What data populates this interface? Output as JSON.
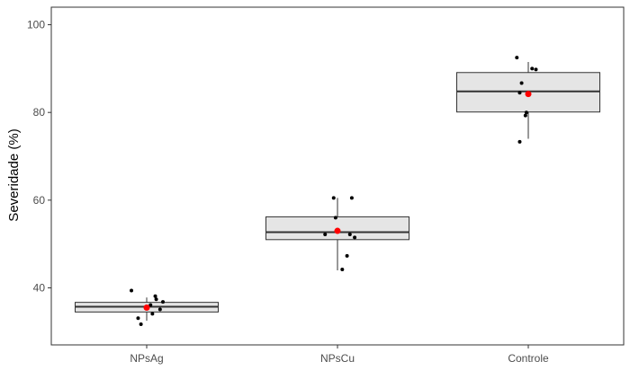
{
  "chart_data": {
    "type": "boxplot",
    "title": "",
    "xlabel": "",
    "ylabel": "Severidade (%)",
    "categories": [
      "NPsAg",
      "NPsCu",
      "Controle"
    ],
    "ylim": [
      27,
      104
    ],
    "yticks": [
      40,
      60,
      80,
      100
    ],
    "grid": false,
    "legend": "none",
    "colors": {
      "box_fill": "#e5e5e5",
      "box_stroke": "#333333",
      "point": "#000000",
      "mean_point": "#ff0000",
      "panel_border": "#333333"
    },
    "boxes": [
      {
        "category": "NPsAg",
        "lower_whisker": 32.5,
        "q1": 34.5,
        "median": 35.7,
        "q3": 36.7,
        "upper_whisker": 37.8,
        "mean": 35.5,
        "points": [
          {
            "x": -0.08,
            "y": 39.4
          },
          {
            "x": 0.045,
            "y": 38.1
          },
          {
            "x": 0.05,
            "y": 37.4
          },
          {
            "x": 0.085,
            "y": 36.8
          },
          {
            "x": 0.02,
            "y": 36.1
          },
          {
            "x": 0.07,
            "y": 35.1
          },
          {
            "x": 0.03,
            "y": 34.1
          },
          {
            "x": -0.045,
            "y": 33.1
          },
          {
            "x": -0.03,
            "y": 31.7
          }
        ]
      },
      {
        "category": "NPsCu",
        "lower_whisker": 44.0,
        "q1": 51.0,
        "median": 52.7,
        "q3": 56.2,
        "upper_whisker": 60.5,
        "mean": 53.0,
        "points": [
          {
            "x": -0.02,
            "y": 60.5
          },
          {
            "x": 0.075,
            "y": 60.5
          },
          {
            "x": -0.01,
            "y": 56.0
          },
          {
            "x": -0.065,
            "y": 52.2
          },
          {
            "x": 0.065,
            "y": 52.2
          },
          {
            "x": 0.09,
            "y": 51.5
          },
          {
            "x": 0.05,
            "y": 47.3
          },
          {
            "x": 0.025,
            "y": 44.2
          }
        ]
      },
      {
        "category": "Controle",
        "lower_whisker": 74.0,
        "q1": 80.1,
        "median": 84.8,
        "q3": 89.1,
        "upper_whisker": 91.5,
        "mean": 84.2,
        "points": [
          {
            "x": -0.06,
            "y": 92.5
          },
          {
            "x": 0.02,
            "y": 90.0
          },
          {
            "x": 0.04,
            "y": 89.8
          },
          {
            "x": -0.035,
            "y": 86.7
          },
          {
            "x": -0.045,
            "y": 84.5
          },
          {
            "x": 0.0,
            "y": 84.2
          },
          {
            "x": -0.01,
            "y": 80.0
          },
          {
            "x": -0.015,
            "y": 79.3
          },
          {
            "x": -0.045,
            "y": 73.3
          }
        ]
      }
    ]
  }
}
